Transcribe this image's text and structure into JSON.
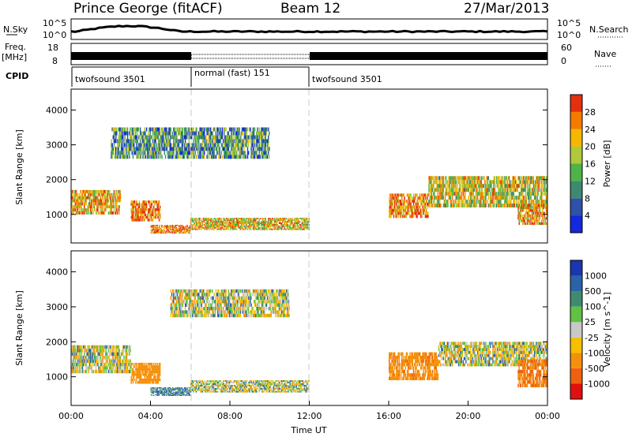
{
  "header": {
    "station": "Prince George (fitACF)",
    "beam": "Beam 12",
    "date": "27/Mar/2013"
  },
  "strips": {
    "nsky_label": "N.Sky",
    "nsky_scale_top": "10^5",
    "nsky_scale_bottom": "10^0",
    "nsearch_label": "N.Search",
    "nsearch_scale_top": "10^5",
    "nsearch_scale_bottom": "10^0",
    "freq_label": "Freq.",
    "freq_unit": "[MHz]",
    "freq_top": "18",
    "freq_bottom": "8",
    "nave_label": "Nave",
    "nave_top": "60",
    "nave_bottom": "0",
    "cpid_label": "CPID",
    "cpid_segments": [
      {
        "name": "twofsound 3501",
        "start_h": 0,
        "end_h": 6
      },
      {
        "name": "normal (fast) 151",
        "start_h": 6,
        "end_h": 12
      },
      {
        "name": "twofsound 3501",
        "start_h": 12,
        "end_h": 24
      }
    ]
  },
  "chart_data": [
    {
      "type": "heatmap",
      "panel": "power",
      "ylabel": "Slant Range [km]",
      "xlim": [
        0,
        24
      ],
      "ylim": [
        180,
        4600
      ],
      "yticks": [
        1000,
        2000,
        3000,
        4000
      ],
      "colorbar": {
        "label": "Power [dB]",
        "ticks": [
          "4",
          "8",
          "12",
          "16",
          "20",
          "24",
          "28"
        ],
        "range": [
          0,
          30
        ],
        "colors": [
          "#1428dc",
          "#2e52a8",
          "#3d8a6e",
          "#4fb34a",
          "#b0c83a",
          "#f5b800",
          "#f57a00",
          "#e43010"
        ]
      },
      "echo_bands": [
        {
          "t": [
            0,
            2.5
          ],
          "range_km": [
            1000,
            1700
          ],
          "level": 0.7
        },
        {
          "t": [
            3.0,
            4.5
          ],
          "range_km": [
            800,
            1400
          ],
          "level": 0.85
        },
        {
          "t": [
            4.0,
            6.0
          ],
          "range_km": [
            450,
            700
          ],
          "level": 0.8
        },
        {
          "t": [
            6.0,
            12.0
          ],
          "range_km": [
            550,
            900
          ],
          "level": 0.65
        },
        {
          "t": [
            2.0,
            10.0
          ],
          "range_km": [
            2600,
            3500
          ],
          "level": 0.35
        },
        {
          "t": [
            16.0,
            18.0
          ],
          "range_km": [
            900,
            1600
          ],
          "level": 0.8
        },
        {
          "t": [
            18.0,
            24.0
          ],
          "range_km": [
            1200,
            2100
          ],
          "level": 0.6
        },
        {
          "t": [
            22.5,
            24.0
          ],
          "range_km": [
            700,
            1300
          ],
          "level": 0.75
        }
      ]
    },
    {
      "type": "heatmap",
      "panel": "velocity",
      "ylabel": "Slant Range [km]",
      "xlabel": "Time UT",
      "xlim": [
        0,
        24
      ],
      "ylim": [
        180,
        4600
      ],
      "yticks": [
        1000,
        2000,
        3000,
        4000
      ],
      "xticks": [
        "00:00",
        "04:00",
        "08:00",
        "12:00",
        "16:00",
        "20:00",
        "00:00"
      ],
      "colorbar": {
        "label": "Velocity [m s^-1]",
        "ticks": [
          "1000",
          "500",
          "100",
          "25",
          "-25",
          "-100",
          "-500",
          "-1000"
        ],
        "range": [
          -1000,
          1000
        ],
        "colors": [
          "#1a36b0",
          "#2c63a8",
          "#3f8b70",
          "#5fc243",
          "#c8c8c8",
          "#f6c000",
          "#f5900a",
          "#f06010",
          "#e01010"
        ]
      },
      "echo_bands": [
        {
          "t": [
            0,
            3.0
          ],
          "range_km": [
            1100,
            1900
          ],
          "velocity": 0
        },
        {
          "t": [
            3.0,
            4.5
          ],
          "range_km": [
            800,
            1400
          ],
          "velocity": -300
        },
        {
          "t": [
            4.0,
            6.0
          ],
          "range_km": [
            450,
            700
          ],
          "velocity": 150
        },
        {
          "t": [
            6.0,
            12.0
          ],
          "range_km": [
            550,
            900
          ],
          "velocity": 0
        },
        {
          "t": [
            5.0,
            11.0
          ],
          "range_km": [
            2700,
            3500
          ],
          "velocity": 0
        },
        {
          "t": [
            16.0,
            18.5
          ],
          "range_km": [
            900,
            1700
          ],
          "velocity": -400
        },
        {
          "t": [
            18.5,
            24.0
          ],
          "range_km": [
            1300,
            2000
          ],
          "velocity": 0
        },
        {
          "t": [
            22.5,
            24.0
          ],
          "range_km": [
            700,
            1500
          ],
          "velocity": -500
        }
      ]
    }
  ]
}
